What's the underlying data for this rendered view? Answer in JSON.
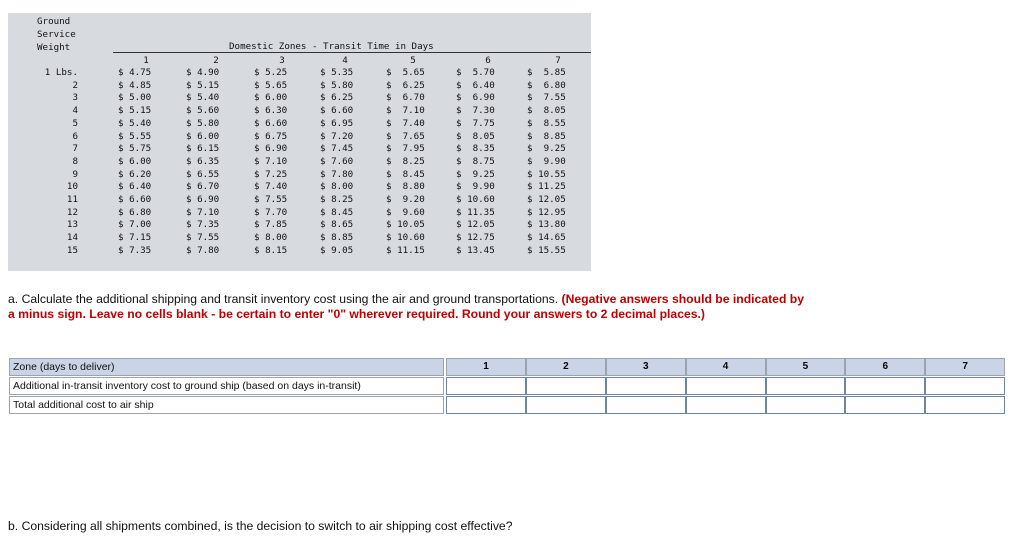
{
  "rate_table": {
    "header_lines": [
      "Ground",
      "Service",
      "Weight"
    ],
    "title": "Domestic Zones - Transit Time in Days",
    "zones": [
      "1",
      "2",
      "3",
      "4",
      "5",
      "6",
      "7"
    ],
    "rows": [
      {
        "weight": "1 Lbs.",
        "rates": [
          "$ 4.75",
          "$ 4.90",
          "$ 5.25",
          "$ 5.35",
          "$  5.65",
          "$  5.70",
          "$  5.85"
        ]
      },
      {
        "weight": "2",
        "rates": [
          "$ 4.85",
          "$ 5.15",
          "$ 5.65",
          "$ 5.80",
          "$  6.25",
          "$  6.40",
          "$  6.80"
        ]
      },
      {
        "weight": "3",
        "rates": [
          "$ 5.00",
          "$ 5.40",
          "$ 6.00",
          "$ 6.25",
          "$  6.70",
          "$  6.90",
          "$  7.55"
        ]
      },
      {
        "weight": "4",
        "rates": [
          "$ 5.15",
          "$ 5.60",
          "$ 6.30",
          "$ 6.60",
          "$  7.10",
          "$  7.30",
          "$  8.05"
        ]
      },
      {
        "weight": "5",
        "rates": [
          "$ 5.40",
          "$ 5.80",
          "$ 6.60",
          "$ 6.95",
          "$  7.40",
          "$  7.75",
          "$  8.55"
        ]
      },
      {
        "weight": "6",
        "rates": [
          "$ 5.55",
          "$ 6.00",
          "$ 6.75",
          "$ 7.20",
          "$  7.65",
          "$  8.05",
          "$  8.85"
        ]
      },
      {
        "weight": "7",
        "rates": [
          "$ 5.75",
          "$ 6.15",
          "$ 6.90",
          "$ 7.45",
          "$  7.95",
          "$  8.35",
          "$  9.25"
        ]
      },
      {
        "weight": "8",
        "rates": [
          "$ 6.00",
          "$ 6.35",
          "$ 7.10",
          "$ 7.60",
          "$  8.25",
          "$  8.75",
          "$  9.90"
        ]
      },
      {
        "weight": "9",
        "rates": [
          "$ 6.20",
          "$ 6.55",
          "$ 7.25",
          "$ 7.80",
          "$  8.45",
          "$  9.25",
          "$ 10.55"
        ]
      },
      {
        "weight": "10",
        "rates": [
          "$ 6.40",
          "$ 6.70",
          "$ 7.40",
          "$ 8.00",
          "$  8.80",
          "$  9.90",
          "$ 11.25"
        ]
      },
      {
        "weight": "11",
        "rates": [
          "$ 6.60",
          "$ 6.90",
          "$ 7.55",
          "$ 8.25",
          "$  9.20",
          "$ 10.60",
          "$ 12.05"
        ]
      },
      {
        "weight": "12",
        "rates": [
          "$ 6.80",
          "$ 7.10",
          "$ 7.70",
          "$ 8.45",
          "$  9.60",
          "$ 11.35",
          "$ 12.95"
        ]
      },
      {
        "weight": "13",
        "rates": [
          "$ 7.00",
          "$ 7.35",
          "$ 7.85",
          "$ 8.65",
          "$ 10.05",
          "$ 12.05",
          "$ 13.80"
        ]
      },
      {
        "weight": "14",
        "rates": [
          "$ 7.15",
          "$ 7.55",
          "$ 8.00",
          "$ 8.85",
          "$ 10.60",
          "$ 12.75",
          "$ 14.65"
        ]
      },
      {
        "weight": "15",
        "rates": [
          "$ 7.35",
          "$ 7.80",
          "$ 8.15",
          "$ 9.05",
          "$ 11.15",
          "$ 13.45",
          "$ 15.55"
        ]
      }
    ]
  },
  "question_a": {
    "prefix": "a.",
    "text": "Calculate the additional shipping and transit inventory cost using the air and ground transportations.",
    "instruction": "(Negative answers should be indicated by a minus sign. Leave no cells blank - be certain to enter \"0\" wherever required. Round your answers to 2 decimal places.)"
  },
  "answer_table": {
    "header_label": "Zone (days to deliver)",
    "zones": [
      "1",
      "2",
      "3",
      "4",
      "5",
      "6",
      "7"
    ],
    "rows": [
      {
        "label": "Additional in-transit inventory cost to ground ship (based on days in-transit)",
        "values": [
          "",
          "",
          "",
          "",
          "",
          "",
          ""
        ]
      },
      {
        "label": "Total additional cost to air ship",
        "values": [
          "",
          "",
          "",
          "",
          "",
          "",
          ""
        ]
      }
    ]
  },
  "question_b": {
    "prefix": "b.",
    "text": "Considering all shipments combined, is the decision to switch to air shipping cost effective?"
  }
}
